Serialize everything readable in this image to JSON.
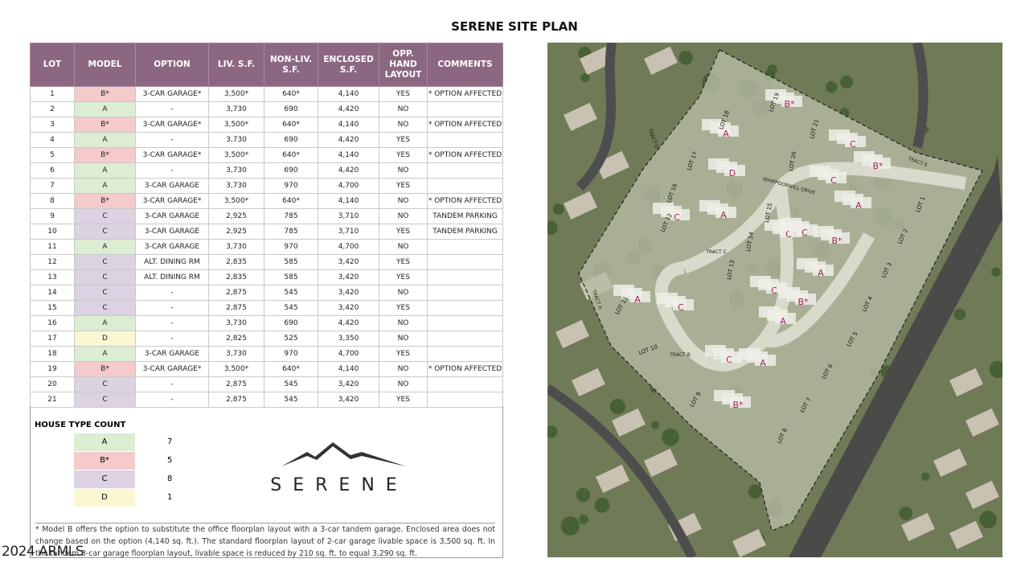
{
  "header": {
    "title": "SERENE SITE PLAN"
  },
  "table": {
    "columns": [
      "LOT",
      "MODEL",
      "OPTION",
      "LIV. S.F.",
      "NON-LIV. S.F.",
      "ENCLOSED S.F.",
      "OPP. HAND LAYOUT",
      "COMMENTS"
    ],
    "model_colors": {
      "A": "#dcedd2",
      "B*": "#f4caca",
      "C": "#dcd2e2",
      "D": "#fbf7d2"
    },
    "rows": [
      {
        "lot": 1,
        "model": "B*",
        "option": "3-CAR GARAGE*",
        "liv": "3,500*",
        "nonliv": "640*",
        "enclosed": "4,140",
        "opp": "YES",
        "comments": "* OPTION AFFECTED"
      },
      {
        "lot": 2,
        "model": "A",
        "option": "-",
        "liv": "3,730",
        "nonliv": "690",
        "enclosed": "4,420",
        "opp": "NO"
      },
      {
        "lot": 3,
        "model": "B*",
        "option": "3-CAR GARAGE*",
        "liv": "3,500*",
        "nonliv": "640*",
        "enclosed": "4,140",
        "opp": "NO",
        "comments": "* OPTION AFFECTED"
      },
      {
        "lot": 4,
        "model": "A",
        "option": "-",
        "liv": "3,730",
        "nonliv": "690",
        "enclosed": "4,420",
        "opp": "YES"
      },
      {
        "lot": 5,
        "model": "B*",
        "option": "3-CAR GARAGE*",
        "liv": "3,500*",
        "nonliv": "640*",
        "enclosed": "4,140",
        "opp": "YES",
        "comments": "* OPTION AFFECTED"
      },
      {
        "lot": 6,
        "model": "A",
        "option": "-",
        "liv": "3,730",
        "nonliv": "690",
        "enclosed": "4,420",
        "opp": "NO"
      },
      {
        "lot": 7,
        "model": "A",
        "option": "3-CAR GARAGE",
        "liv": "3,730",
        "nonliv": "970",
        "enclosed": "4,700",
        "opp": "YES"
      },
      {
        "lot": 8,
        "model": "B*",
        "option": "3-CAR GARAGE*",
        "liv": "3,500*",
        "nonliv": "640*",
        "enclosed": "4,140",
        "opp": "NO",
        "comments": "* OPTION AFFECTED"
      },
      {
        "lot": 9,
        "model": "C",
        "option": "3-CAR GARAGE",
        "liv": "2,925",
        "nonliv": "785",
        "enclosed": "3,710",
        "opp": "NO",
        "comments": "TANDEM PARKING"
      },
      {
        "lot": 10,
        "model": "C",
        "option": "3-CAR GARAGE",
        "liv": "2,925",
        "nonliv": "785",
        "enclosed": "3,710",
        "opp": "YES",
        "comments": "TANDEM PARKING"
      },
      {
        "lot": 11,
        "model": "A",
        "option": "3-CAR GARAGE",
        "liv": "3,730",
        "nonliv": "970",
        "enclosed": "4,700",
        "opp": "NO"
      },
      {
        "lot": 12,
        "model": "C",
        "option": "ALT. DINING RM",
        "liv": "2,835",
        "nonliv": "585",
        "enclosed": "3,420",
        "opp": "YES"
      },
      {
        "lot": 13,
        "model": "C",
        "option": "ALT. DINING RM",
        "liv": "2,835",
        "nonliv": "585",
        "enclosed": "3,420",
        "opp": "YES"
      },
      {
        "lot": 14,
        "model": "C",
        "option": "-",
        "liv": "2,875",
        "nonliv": "545",
        "enclosed": "3,420",
        "opp": "NO"
      },
      {
        "lot": 15,
        "model": "C",
        "option": "-",
        "liv": "2,875",
        "nonliv": "545",
        "enclosed": "3,420",
        "opp": "YES"
      },
      {
        "lot": 16,
        "model": "A",
        "option": "-",
        "liv": "3,730",
        "nonliv": "690",
        "enclosed": "4,420",
        "opp": "NO"
      },
      {
        "lot": 17,
        "model": "D",
        "option": "-",
        "liv": "2,825",
        "nonliv": "525",
        "enclosed": "3,350",
        "opp": "NO"
      },
      {
        "lot": 18,
        "model": "A",
        "option": "3-CAR GARAGE",
        "liv": "3,730",
        "nonliv": "970",
        "enclosed": "4,700",
        "opp": "YES"
      },
      {
        "lot": 19,
        "model": "B*",
        "option": "3-CAR GARAGE*",
        "liv": "3,500*",
        "nonliv": "640*",
        "enclosed": "4,140",
        "opp": "NO",
        "comments": "* OPTION AFFECTED"
      },
      {
        "lot": 20,
        "model": "C",
        "option": "-",
        "liv": "2,875",
        "nonliv": "545",
        "enclosed": "3,420",
        "opp": "NO"
      },
      {
        "lot": 21,
        "model": "C",
        "option": "-",
        "liv": "2,875",
        "nonliv": "545",
        "enclosed": "3,420",
        "opp": "YES"
      }
    ]
  },
  "house_type_count": {
    "title": "HOUSE TYPE COUNT",
    "items": [
      {
        "model": "A",
        "count": 7
      },
      {
        "model": "B*",
        "count": 5
      },
      {
        "model": "C",
        "count": 8
      },
      {
        "model": "D",
        "count": 1
      }
    ]
  },
  "logo": {
    "text": "SERENE"
  },
  "footnote": "* Model B offers the option to substitute the office floorplan layout with a 3-car tandem garage. Enclosed area does not change based on the option (4,140 sq. ft.). The standard floorplan layout of 2-car garage livable space is 3,500 sq. ft. In the tandem 3-car garage floorplan layout, livable space is reduced by 210 sq. ft. to equal 3,290 sq. ft.",
  "map": {
    "lot_labels": [
      "LOT 1",
      "LOT 2",
      "LOT 3",
      "LOT 4",
      "LOT 5",
      "LOT 6",
      "LOT 7",
      "LOT 8",
      "LOT 9",
      "LOT 10",
      "LOT 11",
      "LOT 12",
      "LOT 13",
      "LOT 14",
      "LOT 15",
      "LOT 16",
      "LOT 17",
      "LOT 18",
      "LOT 19",
      "LOT 20",
      "LOT 21"
    ],
    "tracts": [
      "TRACT A",
      "TRACT B",
      "TRACT C",
      "TRACT D",
      "TRACT E"
    ],
    "streets": [
      "WHIPPOORWILL DRIVE"
    ]
  },
  "watermark": "2024 ARMLS"
}
